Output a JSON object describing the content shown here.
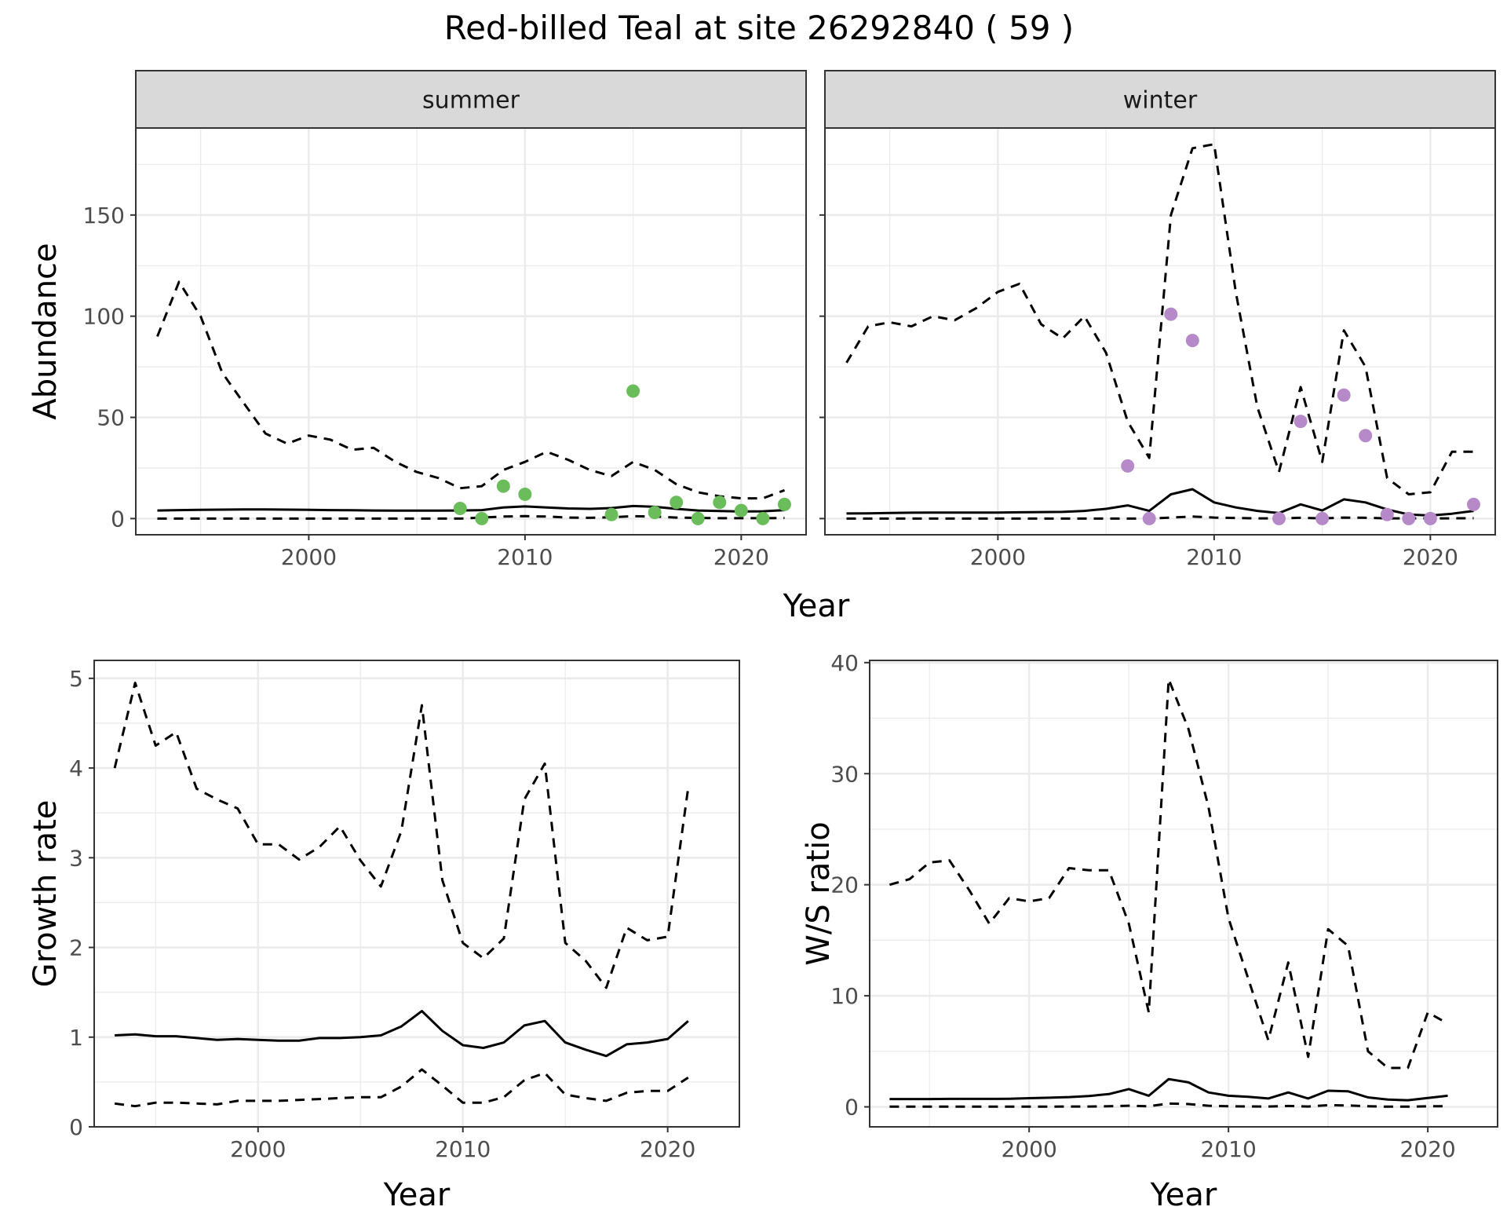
{
  "title": "Red-billed Teal at site 26292840 ( 59 )",
  "chart_data": [
    {
      "panel": "summer",
      "type": "line",
      "strip": "summer",
      "xlabel": "",
      "ylabel": "Abundance",
      "xlim": [
        1992,
        2023
      ],
      "ylim": [
        -8,
        193
      ],
      "xticks": [
        2000,
        2010,
        2020
      ],
      "yticks": [
        0,
        50,
        100,
        150
      ],
      "point_color": "#6abd5a",
      "years": [
        1993,
        1994,
        1995,
        1996,
        1997,
        1998,
        1999,
        2000,
        2001,
        2002,
        2003,
        2004,
        2005,
        2006,
        2007,
        2008,
        2009,
        2010,
        2011,
        2012,
        2013,
        2014,
        2015,
        2016,
        2017,
        2018,
        2019,
        2020,
        2021,
        2022
      ],
      "estimate": [
        4,
        4.2,
        4.3,
        4.4,
        4.5,
        4.5,
        4.4,
        4.3,
        4.2,
        4.1,
        4,
        3.9,
        3.9,
        3.9,
        4,
        4.2,
        5.5,
        6,
        5.5,
        5,
        4.8,
        5.2,
        6.2,
        5.8,
        4.8,
        4,
        3.7,
        3.5,
        3.6,
        4.2
      ],
      "upper": [
        90,
        117,
        100,
        72,
        57,
        42,
        37,
        41,
        39,
        34,
        35,
        28,
        23,
        20,
        15,
        16,
        24,
        28,
        33,
        29,
        24,
        21,
        28,
        24,
        17,
        13,
        11,
        10,
        10,
        14
      ],
      "lower": [
        0,
        0,
        0,
        0,
        0,
        0,
        0,
        0,
        0,
        0,
        0,
        0,
        0,
        0,
        0,
        0.5,
        1,
        1.2,
        1,
        0.5,
        0.4,
        0.6,
        1.2,
        1,
        0.5,
        0.3,
        0.2,
        0.2,
        0.2,
        0.3
      ],
      "observed_x": [
        2007,
        2008,
        2009,
        2010,
        2014,
        2015,
        2016,
        2017,
        2018,
        2019,
        2020,
        2021,
        2022
      ],
      "observed_y": [
        5,
        0,
        16,
        12,
        2,
        63,
        3,
        8,
        0,
        8,
        4,
        0,
        7
      ]
    },
    {
      "panel": "winter",
      "type": "line",
      "strip": "winter",
      "xlabel": "Year",
      "ylabel": "",
      "xlim": [
        1992,
        2023
      ],
      "ylim": [
        -8,
        193
      ],
      "xticks": [
        2000,
        2010,
        2020
      ],
      "yticks": [
        0,
        50,
        100,
        150
      ],
      "point_color": "#b689c9",
      "years": [
        1993,
        1994,
        1995,
        1996,
        1997,
        1998,
        1999,
        2000,
        2001,
        2002,
        2003,
        2004,
        2005,
        2006,
        2007,
        2008,
        2009,
        2010,
        2011,
        2012,
        2013,
        2014,
        2015,
        2016,
        2017,
        2018,
        2019,
        2020,
        2021,
        2022
      ],
      "estimate": [
        2.5,
        2.6,
        2.8,
        2.9,
        3,
        3,
        3,
        3,
        3.1,
        3.2,
        3.3,
        3.8,
        4.8,
        6.5,
        3.8,
        12,
        14.5,
        8,
        5.5,
        3.8,
        2.7,
        7,
        4,
        9.5,
        8,
        4.5,
        2,
        1.5,
        2.4,
        3.8
      ],
      "upper": [
        77,
        95,
        97,
        95,
        100,
        98,
        104,
        112,
        116,
        96,
        89,
        100,
        82,
        48,
        30,
        150,
        183,
        185,
        112,
        55,
        23,
        65,
        28,
        93,
        75,
        20,
        12,
        13,
        33,
        33
      ],
      "lower": [
        0,
        0,
        0,
        0,
        0,
        0,
        0,
        0,
        0,
        0,
        0,
        0,
        0,
        0,
        0,
        0.5,
        1,
        0.5,
        0.3,
        0.1,
        0.1,
        0.4,
        0.1,
        0.5,
        0.4,
        0.1,
        0.1,
        0.1,
        0.1,
        0.2
      ],
      "observed_x": [
        2006,
        2007,
        2008,
        2009,
        2013,
        2014,
        2015,
        2016,
        2017,
        2018,
        2019,
        2020,
        2022
      ],
      "observed_y": [
        26,
        0,
        101,
        88,
        0,
        48,
        0,
        61,
        41,
        2,
        0,
        0,
        7
      ]
    },
    {
      "panel": "growth",
      "type": "line",
      "xlabel": "Year",
      "ylabel": "Growth rate",
      "xlim": [
        1992,
        2023.5
      ],
      "ylim": [
        0,
        5.2
      ],
      "xticks": [
        2000,
        2010,
        2020
      ],
      "yticks": [
        0,
        1,
        2,
        3,
        4,
        5
      ],
      "years": [
        1993,
        1994,
        1995,
        1996,
        1997,
        1998,
        1999,
        2000,
        2001,
        2002,
        2003,
        2004,
        2005,
        2006,
        2007,
        2008,
        2009,
        2010,
        2011,
        2012,
        2013,
        2014,
        2015,
        2016,
        2017,
        2018,
        2019,
        2020,
        2021
      ],
      "estimate": [
        1.02,
        1.03,
        1.01,
        1.01,
        0.99,
        0.97,
        0.98,
        0.97,
        0.96,
        0.96,
        0.99,
        0.99,
        1,
        1.02,
        1.12,
        1.29,
        1.07,
        0.91,
        0.88,
        0.94,
        1.13,
        1.18,
        0.94,
        0.86,
        0.79,
        0.92,
        0.94,
        0.98,
        1.18
      ],
      "upper": [
        4,
        4.95,
        4.25,
        4.4,
        3.77,
        3.65,
        3.55,
        3.15,
        3.15,
        2.98,
        3.12,
        3.35,
        2.97,
        2.68,
        3.3,
        4.7,
        2.75,
        2.05,
        1.88,
        2.1,
        3.65,
        4.05,
        2.05,
        1.85,
        1.55,
        2.22,
        2.08,
        2.12,
        3.78
      ],
      "lower": [
        0.26,
        0.23,
        0.27,
        0.27,
        0.26,
        0.25,
        0.29,
        0.29,
        0.29,
        0.3,
        0.31,
        0.32,
        0.33,
        0.33,
        0.45,
        0.64,
        0.46,
        0.27,
        0.27,
        0.33,
        0.52,
        0.6,
        0.36,
        0.32,
        0.29,
        0.38,
        0.4,
        0.4,
        0.55
      ]
    },
    {
      "panel": "ratio",
      "type": "line",
      "xlabel": "Year",
      "ylabel": "W/S ratio",
      "xlim": [
        1992,
        2023.5
      ],
      "ylim": [
        -1.8,
        40.2
      ],
      "xticks": [
        2000,
        2010,
        2020
      ],
      "yticks": [
        0,
        10,
        20,
        30,
        40
      ],
      "years": [
        1993,
        1994,
        1995,
        1996,
        1997,
        1998,
        1999,
        2000,
        2001,
        2002,
        2003,
        2004,
        2005,
        2006,
        2007,
        2008,
        2009,
        2010,
        2011,
        2012,
        2013,
        2014,
        2015,
        2016,
        2017,
        2018,
        2019,
        2020,
        2021
      ],
      "estimate": [
        0.7,
        0.7,
        0.7,
        0.72,
        0.72,
        0.72,
        0.73,
        0.78,
        0.82,
        0.88,
        0.98,
        1.15,
        1.6,
        1,
        2.5,
        2.2,
        1.3,
        1,
        0.9,
        0.75,
        1.3,
        0.75,
        1.45,
        1.4,
        0.85,
        0.65,
        0.6,
        0.8,
        1
      ],
      "upper": [
        20,
        20.5,
        22,
        22.2,
        19.5,
        16.5,
        18.8,
        18.5,
        18.8,
        21.5,
        21.3,
        21.3,
        16.5,
        8.5,
        38.5,
        34,
        27,
        17,
        11.5,
        6,
        13,
        4.5,
        16,
        14.5,
        5,
        3.5,
        3.5,
        8.5,
        7.5
      ],
      "lower": [
        0.02,
        0.02,
        0.02,
        0.02,
        0.02,
        0.02,
        0.02,
        0.02,
        0.02,
        0.03,
        0.03,
        0.05,
        0.1,
        0.05,
        0.3,
        0.25,
        0.1,
        0.05,
        0.04,
        0.03,
        0.08,
        0.03,
        0.15,
        0.12,
        0.05,
        0.02,
        0.02,
        0.05,
        0.06
      ]
    }
  ]
}
